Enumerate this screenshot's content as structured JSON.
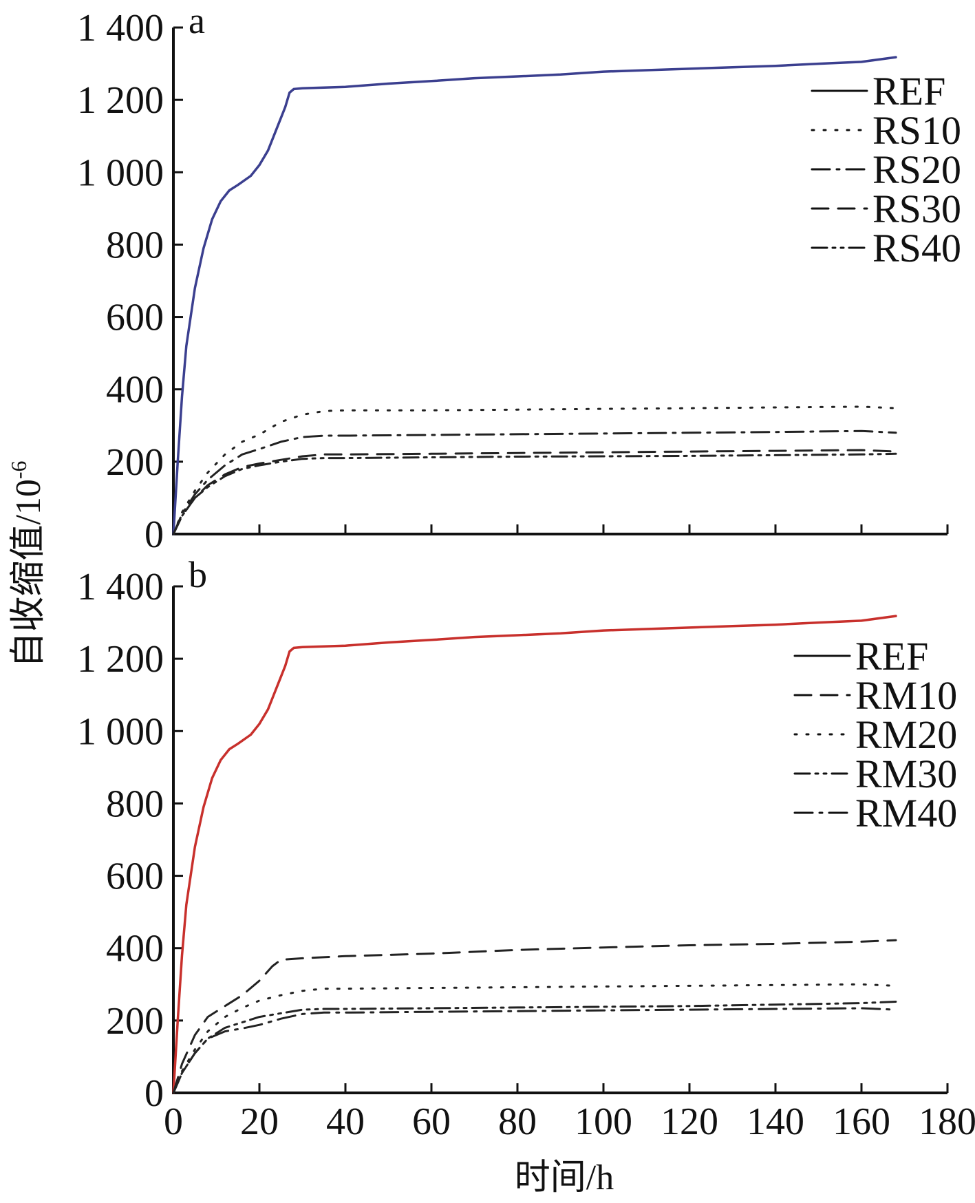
{
  "chart_data": [
    {
      "panel": "a",
      "type": "line",
      "xlabel": "时间/h",
      "ylabel": "自收缩值/10",
      "ylabel_sup": "-6",
      "xlim": [
        0,
        180
      ],
      "ylim": [
        0,
        1400
      ],
      "x_ticks": [
        "0",
        "20",
        "40",
        "60",
        "80",
        "100",
        "120",
        "140",
        "160",
        "180"
      ],
      "y_ticks": [
        "0",
        "200",
        "400",
        "600",
        "800",
        "1 000",
        "1 200",
        "1 400"
      ],
      "legend_position": "top-right",
      "colors": {
        "REF": "#3b3f8f",
        "others": "#222222"
      },
      "series": [
        {
          "name": "REF",
          "style": "solid",
          "x": [
            0,
            1,
            2,
            3,
            5,
            7,
            9,
            11,
            13,
            15,
            18,
            20,
            22,
            24,
            26,
            27,
            28,
            30,
            35,
            40,
            50,
            60,
            70,
            80,
            90,
            100,
            110,
            120,
            130,
            140,
            150,
            160,
            168
          ],
          "y": [
            0,
            200,
            380,
            520,
            680,
            790,
            870,
            920,
            950,
            965,
            990,
            1020,
            1060,
            1120,
            1180,
            1220,
            1230,
            1232,
            1234,
            1236,
            1245,
            1252,
            1260,
            1265,
            1270,
            1278,
            1282,
            1286,
            1290,
            1294,
            1300,
            1305,
            1318
          ]
        },
        {
          "name": "RS10",
          "style": "dotted",
          "x": [
            0,
            2,
            5,
            8,
            12,
            16,
            20,
            25,
            30,
            35,
            40,
            60,
            80,
            100,
            120,
            140,
            160,
            168
          ],
          "y": [
            0,
            60,
            120,
            170,
            220,
            255,
            275,
            310,
            330,
            340,
            342,
            342,
            344,
            346,
            348,
            350,
            352,
            348
          ]
        },
        {
          "name": "RS20",
          "style": "dashdot",
          "x": [
            0,
            2,
            5,
            8,
            12,
            16,
            20,
            25,
            30,
            35,
            40,
            60,
            80,
            100,
            120,
            140,
            160,
            168
          ],
          "y": [
            0,
            55,
            110,
            150,
            190,
            220,
            235,
            255,
            268,
            272,
            272,
            274,
            276,
            278,
            280,
            282,
            285,
            280
          ]
        },
        {
          "name": "RS30",
          "style": "dashed",
          "x": [
            0,
            2,
            5,
            8,
            12,
            16,
            20,
            25,
            30,
            35,
            40,
            60,
            80,
            100,
            120,
            140,
            160,
            168
          ],
          "y": [
            0,
            50,
            100,
            135,
            165,
            185,
            195,
            205,
            215,
            220,
            220,
            222,
            224,
            226,
            228,
            230,
            232,
            228
          ]
        },
        {
          "name": "RS40",
          "style": "dashdotdot",
          "x": [
            0,
            2,
            5,
            8,
            12,
            16,
            20,
            25,
            30,
            35,
            40,
            60,
            80,
            100,
            120,
            140,
            160,
            168
          ],
          "y": [
            0,
            50,
            100,
            130,
            160,
            180,
            190,
            200,
            208,
            210,
            210,
            212,
            214,
            215,
            216,
            218,
            220,
            222
          ]
        }
      ]
    },
    {
      "panel": "b",
      "type": "line",
      "xlabel": "时间/h",
      "ylabel": "自收缩值/10",
      "ylabel_sup": "-6",
      "xlim": [
        0,
        180
      ],
      "ylim": [
        0,
        1400
      ],
      "x_ticks": [
        "0",
        "20",
        "40",
        "60",
        "80",
        "100",
        "120",
        "140",
        "160",
        "180"
      ],
      "y_ticks": [
        "0",
        "200",
        "400",
        "600",
        "800",
        "1 000",
        "1 200",
        "1 400"
      ],
      "legend_position": "top-right",
      "colors": {
        "REF": "#c8302c",
        "others": "#222222"
      },
      "series": [
        {
          "name": "REF",
          "style": "solid",
          "x": [
            0,
            1,
            2,
            3,
            5,
            7,
            9,
            11,
            13,
            15,
            18,
            20,
            22,
            24,
            26,
            27,
            28,
            30,
            35,
            40,
            50,
            60,
            70,
            80,
            90,
            100,
            110,
            120,
            130,
            140,
            150,
            160,
            168
          ],
          "y": [
            0,
            200,
            380,
            520,
            680,
            790,
            870,
            920,
            950,
            965,
            990,
            1020,
            1060,
            1120,
            1180,
            1220,
            1230,
            1232,
            1234,
            1236,
            1245,
            1252,
            1260,
            1265,
            1270,
            1278,
            1282,
            1286,
            1290,
            1294,
            1300,
            1305,
            1318
          ]
        },
        {
          "name": "RM10",
          "style": "dashed",
          "x": [
            0,
            2,
            5,
            8,
            12,
            16,
            20,
            23,
            25,
            30,
            40,
            60,
            80,
            100,
            120,
            140,
            160,
            168
          ],
          "y": [
            0,
            80,
            160,
            210,
            240,
            270,
            310,
            350,
            368,
            372,
            378,
            385,
            395,
            402,
            408,
            412,
            418,
            422
          ]
        },
        {
          "name": "RM20",
          "style": "dotted",
          "x": [
            0,
            2,
            5,
            8,
            12,
            16,
            20,
            25,
            30,
            35,
            40,
            60,
            80,
            100,
            120,
            140,
            160,
            168
          ],
          "y": [
            0,
            60,
            120,
            170,
            210,
            235,
            255,
            270,
            282,
            288,
            288,
            290,
            292,
            294,
            296,
            298,
            300,
            296
          ]
        },
        {
          "name": "RM30",
          "style": "dashdotdot",
          "x": [
            0,
            2,
            5,
            8,
            12,
            16,
            20,
            25,
            30,
            35,
            40,
            60,
            80,
            100,
            120,
            140,
            160,
            168
          ],
          "y": [
            0,
            55,
            110,
            150,
            180,
            195,
            210,
            220,
            230,
            232,
            232,
            234,
            236,
            238,
            240,
            244,
            248,
            252
          ]
        },
        {
          "name": "RM40",
          "style": "dashdot",
          "x": [
            0,
            2,
            5,
            8,
            12,
            16,
            20,
            25,
            30,
            35,
            40,
            60,
            80,
            100,
            120,
            140,
            160,
            168
          ],
          "y": [
            0,
            55,
            110,
            150,
            170,
            178,
            188,
            205,
            218,
            222,
            222,
            224,
            226,
            228,
            230,
            232,
            234,
            230
          ]
        }
      ]
    }
  ]
}
